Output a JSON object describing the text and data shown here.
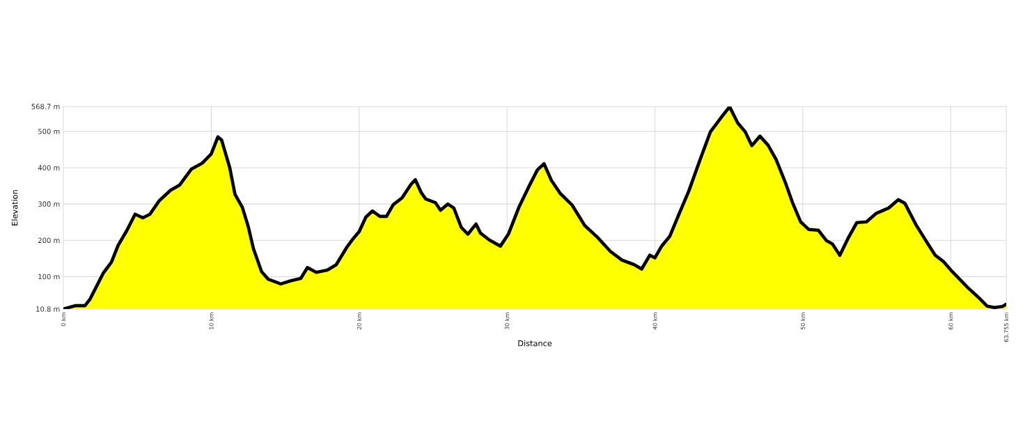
{
  "chart_data": {
    "type": "area",
    "xlabel": "Distance",
    "ylabel": "Elevation",
    "x": [
      0,
      0.8,
      1.46,
      1.8,
      2.2,
      2.7,
      3.25,
      3.7,
      4.3,
      4.85,
      5.37,
      5.85,
      6.5,
      7.25,
      7.85,
      8.65,
      9.4,
      10.0,
      10.45,
      10.7,
      11.25,
      11.6,
      12.1,
      12.5,
      12.85,
      13.4,
      13.85,
      14.7,
      15.4,
      16.05,
      16.5,
      17.1,
      17.85,
      18.45,
      19.15,
      19.6,
      20.0,
      20.45,
      20.9,
      21.4,
      21.85,
      22.3,
      22.9,
      23.5,
      23.8,
      24.2,
      24.5,
      25.15,
      25.5,
      26.0,
      26.4,
      26.9,
      27.35,
      27.9,
      28.2,
      28.8,
      29.55,
      30.1,
      30.8,
      31.45,
      32.05,
      32.5,
      33.0,
      33.6,
      34.4,
      35.25,
      36.1,
      37.0,
      37.75,
      38.6,
      39.1,
      39.65,
      40.0,
      40.45,
      41.0,
      41.6,
      42.3,
      43.05,
      43.75,
      44.45,
      45.05,
      45.6,
      46.1,
      46.55,
      47.1,
      47.65,
      48.2,
      48.8,
      49.3,
      49.85,
      50.4,
      51.05,
      51.6,
      52.0,
      52.5,
      53.05,
      53.65,
      54.3,
      54.95,
      55.8,
      56.45,
      56.9,
      57.65,
      58.4,
      58.95,
      59.5,
      60.1,
      61.15,
      62.0,
      62.45,
      62.95,
      63.5,
      63.755
    ],
    "series": [
      {
        "color": "#ffff00",
        "values": [
          11,
          20,
          20,
          38,
          70,
          110,
          140,
          186,
          228,
          272,
          262,
          272,
          310,
          338,
          352,
          396,
          413,
          438,
          485,
          476,
          400,
          327,
          291,
          238,
          177,
          114,
          93,
          80,
          89,
          95,
          125,
          112,
          118,
          133,
          180,
          205,
          224,
          264,
          281,
          266,
          266,
          298,
          317,
          354,
          367,
          331,
          314,
          304,
          283,
          300,
          289,
          236,
          217,
          245,
          220,
          201,
          184,
          218,
          291,
          346,
          394,
          411,
          365,
          329,
          297,
          241,
          209,
          169,
          146,
          133,
          121,
          159,
          152,
          184,
          211,
          270,
          337,
          422,
          499,
          537,
          568,
          523,
          499,
          461,
          487,
          462,
          422,
          361,
          304,
          251,
          230,
          228,
          199,
          190,
          159,
          205,
          249,
          251,
          274,
          289,
          312,
          302,
          243,
          194,
          159,
          142,
          114,
          70,
          38,
          19,
          15,
          18,
          24
        ]
      }
    ],
    "xlim": [
      0,
      63.755
    ],
    "xticks": [
      {
        "value": 0,
        "label": "0 km"
      },
      {
        "value": 10,
        "label": "10 km"
      },
      {
        "value": 20,
        "label": "20 km"
      },
      {
        "value": 30,
        "label": "30 km"
      },
      {
        "value": 40,
        "label": "40 km"
      },
      {
        "value": 50,
        "label": "50 km"
      },
      {
        "value": 60,
        "label": "60 km"
      },
      {
        "value": 63.755,
        "label": "63.755 km"
      }
    ],
    "ylim": [
      10.8,
      568.7
    ],
    "yticks": [
      {
        "value": 10.8,
        "label": "10.8 m"
      },
      {
        "value": 100,
        "label": "100 m"
      },
      {
        "value": 200,
        "label": "200 m"
      },
      {
        "value": 300,
        "label": "300 m"
      },
      {
        "value": 400,
        "label": "400 m"
      },
      {
        "value": 500,
        "label": "500 m"
      },
      {
        "value": 568.7,
        "label": "568.7 m"
      }
    ],
    "grid": true
  }
}
